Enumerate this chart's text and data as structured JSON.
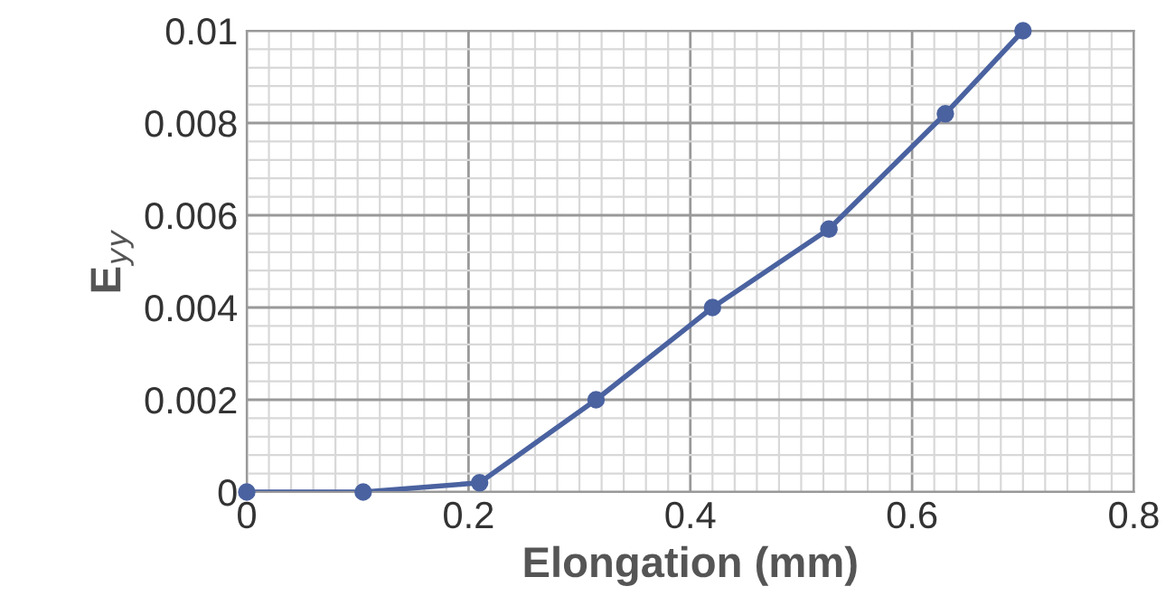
{
  "chart_data": {
    "type": "line",
    "xlabel": "Elongation (mm)",
    "ylabel": "E$_{yy}$",
    "x": [
      0,
      0.105,
      0.21,
      0.315,
      0.42,
      0.525,
      0.63,
      0.7
    ],
    "series": [
      {
        "color": "#4a62a0",
        "values": [
          0,
          0,
          0.0002,
          0.002,
          0.004,
          0.0057,
          0.0082,
          0.01
        ]
      }
    ],
    "xlim": [
      0,
      0.8
    ],
    "xticks": [
      0,
      0.2,
      0.4,
      0.6,
      0.8
    ],
    "ylim": [
      0,
      0.01
    ],
    "yticks": [
      0,
      0.002,
      0.004,
      0.006,
      0.008,
      0.01
    ],
    "grid": true,
    "marker": "circle",
    "line_style": "solid"
  }
}
